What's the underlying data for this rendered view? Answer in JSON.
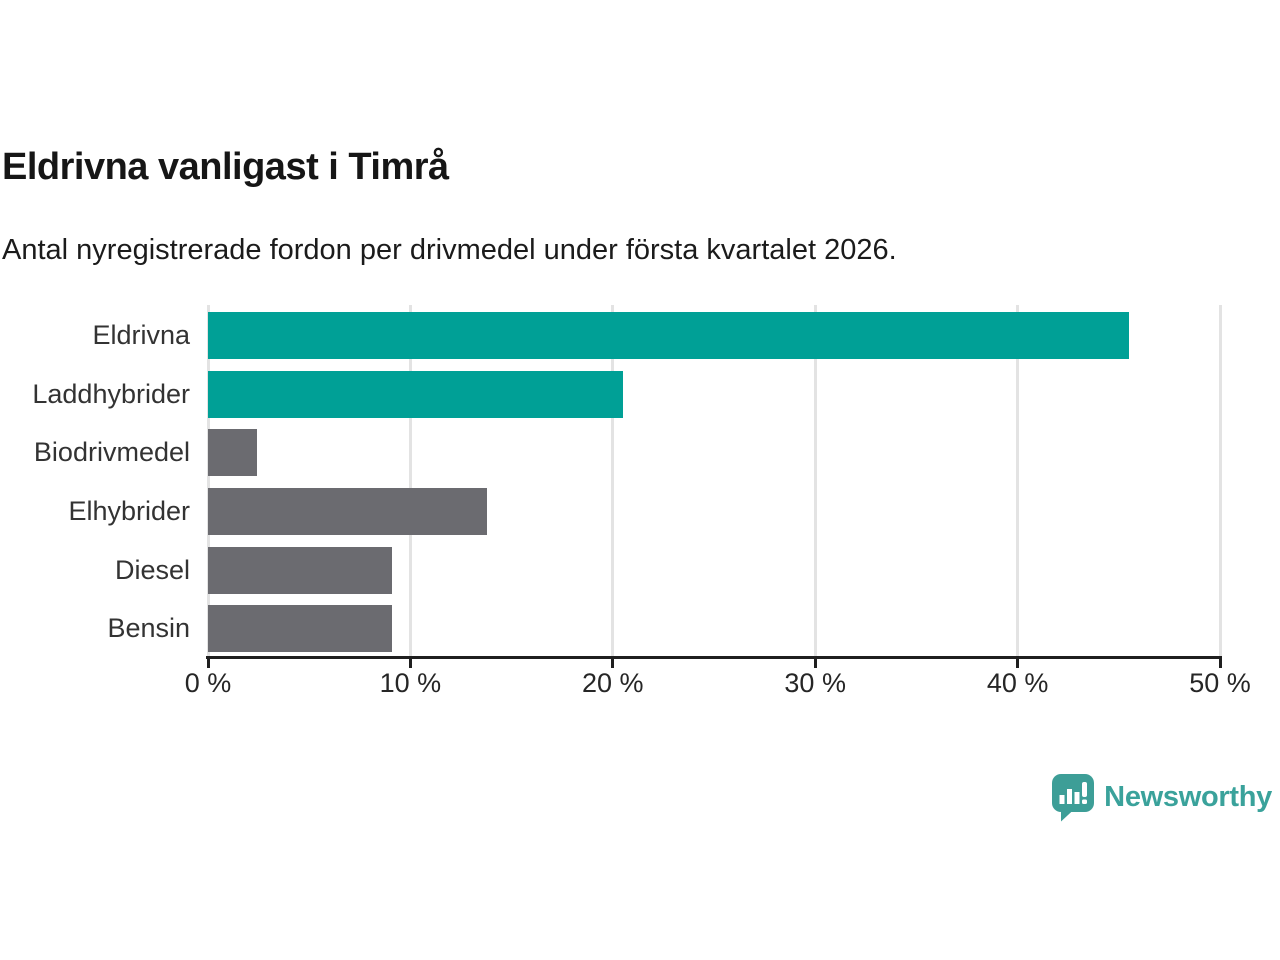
{
  "chart_data": {
    "type": "bar",
    "orientation": "horizontal",
    "title": "Eldrivna vanligast i Timrå",
    "subtitle": "Antal nyregistrerade fordon per drivmedel under första kvartalet 2026.",
    "categories": [
      "Eldrivna",
      "Laddhybrider",
      "Biodrivmedel",
      "Elhybrider",
      "Diesel",
      "Bensin"
    ],
    "values": [
      45.5,
      20.5,
      2.4,
      13.8,
      9.1,
      9.1
    ],
    "unit": "%",
    "xlim": [
      0,
      50
    ],
    "x_ticks": [
      0,
      10,
      20,
      30,
      40,
      50
    ],
    "x_tick_labels": [
      "0 %",
      "10 %",
      "20 %",
      "30 %",
      "40 %",
      "50 %"
    ],
    "grid": "vertical-gridlines",
    "legend": "none",
    "highlighted": [
      true,
      true,
      false,
      false,
      false,
      false
    ],
    "colors": {
      "highlight": "#00A096",
      "default": "#6B6B70",
      "gridline": "#E3E3E3",
      "axis": "#1F1F1F"
    }
  },
  "branding": {
    "logo_text": "Newsworthy",
    "logo_text_color": "#3AA29B",
    "logo_icon": "newsworthy-speech-bubble-chart-icon",
    "logo_icon_color": "#3D9E97",
    "logo_glyph_color": "#FFFFFF"
  }
}
